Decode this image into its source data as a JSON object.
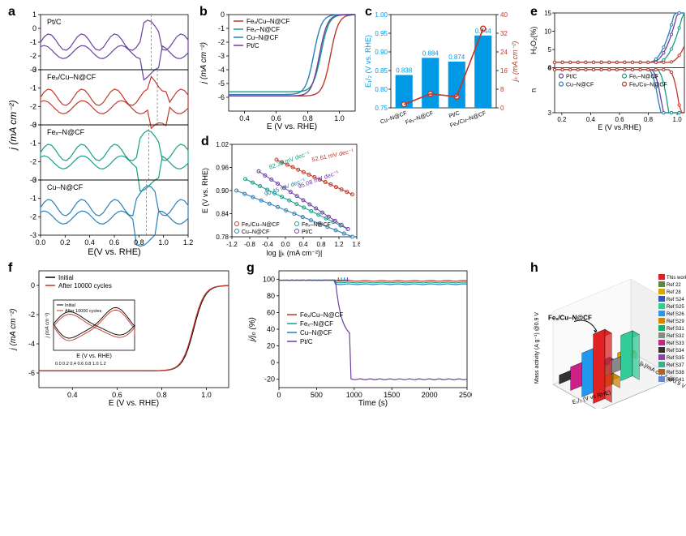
{
  "colors": {
    "fexcu": "#c0392b",
    "fex": "#16a085",
    "cu": "#2980b9",
    "pt": "#6a3fa0",
    "bar": "#0099e5",
    "bar_line": "#c0392b",
    "black": "#000000",
    "red": "#c0392b"
  },
  "panels": {
    "a": {
      "label": "a",
      "xlabel": "E(V vs. RHE)",
      "ylabel": "j (mA cm⁻²)",
      "xlim": [
        0,
        1.2
      ],
      "subplots": [
        {
          "name": "Pt/C",
          "color": "#6a3fa0",
          "ylo": -3,
          "yhi": 1,
          "dashx": 0.9
        },
        {
          "name": "Feₓ/Cu–N@CF",
          "color": "#c0392b",
          "ylo": -3,
          "yhi": 0,
          "dashx": 0.95
        },
        {
          "name": "Feₓ–N@CF",
          "color": "#16a085",
          "ylo": -3,
          "yhi": 0,
          "dashx": 0.88
        },
        {
          "name": "Cu–N@CF",
          "color": "#2980b9",
          "ylo": -3,
          "yhi": 0,
          "dashx": 0.86
        }
      ]
    },
    "b": {
      "label": "b",
      "xlabel": "E (V vs. RHE)",
      "ylabel": "j (mA cm⁻²)",
      "xlim": [
        0.3,
        1.1
      ],
      "xticks": [
        0.4,
        0.6,
        0.8,
        1.0
      ],
      "ylim": [
        -7,
        0
      ],
      "yticks": [
        -6,
        -5,
        -4,
        -3,
        -2,
        -1,
        0
      ],
      "series": [
        {
          "name": "Feₓ/Cu–N@CF",
          "color": "#c0392b",
          "halfwave": 0.944,
          "limit": -5.9
        },
        {
          "name": "Feₓ–N@CF",
          "color": "#16a085",
          "halfwave": 0.884,
          "limit": -5.6
        },
        {
          "name": "Cu–N@CF",
          "color": "#2980b9",
          "halfwave": 0.838,
          "limit": -5.8
        },
        {
          "name": "Pt/C",
          "color": "#6a3fa0",
          "halfwave": 0.874,
          "limit": -5.9
        }
      ]
    },
    "c": {
      "label": "c",
      "ylabel_left": "E₁/₂ (V vs. RHE)",
      "ylabel_right": "jₖ (mA cm⁻²)",
      "ylim_left": [
        0.75,
        1.0
      ],
      "ylim_right": [
        0,
        40
      ],
      "categories": [
        "Cu–N@CF",
        "Feₓ–N@CF",
        "Pt/C",
        "Feₓ/Cu–N@CF"
      ],
      "bar_values": [
        0.838,
        0.884,
        0.874,
        0.944
      ],
      "bar_labels": [
        "0.838",
        "0.884",
        "0.874",
        "0.944"
      ],
      "line_values": [
        1.5,
        6.0,
        4.8,
        34.0
      ],
      "bar_color": "#0099e5",
      "line_color": "#c0392b"
    },
    "d": {
      "label": "d",
      "xlabel": "log |jₖ (mA cm⁻²)|",
      "ylabel": "E (V vs. RHE)",
      "xlim": [
        -1.2,
        1.6
      ],
      "xticks": [
        -1.2,
        -0.8,
        -0.4,
        0,
        0.4,
        0.8,
        1.2,
        1.6
      ],
      "ylim": [
        0.78,
        1.02
      ],
      "yticks": [
        0.78,
        0.84,
        0.9,
        0.96,
        1.02
      ],
      "lines": [
        {
          "name": "Feₓ/Cu–N@CF",
          "color": "#c0392b",
          "x0": -0.2,
          "y0": 0.98,
          "x1": 1.5,
          "y1": 0.89,
          "tafel": "52.61 mV dec⁻¹"
        },
        {
          "name": "Feₓ–N@CF",
          "color": "#16a085",
          "x0": -0.9,
          "y0": 0.93,
          "x1": 1.4,
          "y1": 0.8,
          "tafel": "82.38 mV dec⁻¹"
        },
        {
          "name": "Cu–N@CF",
          "color": "#2980b9",
          "x0": -1.1,
          "y0": 0.9,
          "x1": 1.5,
          "y1": 0.78,
          "tafel": "90.45 mV dec⁻¹"
        },
        {
          "name": "Pt/C",
          "color": "#6a3fa0",
          "x0": -0.6,
          "y0": 0.95,
          "x1": 1.4,
          "y1": 0.8,
          "tafel": "95.08 mV dec⁻¹"
        }
      ]
    },
    "e": {
      "label": "e",
      "xlabel": "E (V vs.RHE)",
      "ylabel_top": "H₂O₂(%)",
      "ylabel_bot": "n",
      "xlim": [
        0.15,
        1.05
      ],
      "xticks": [
        0.2,
        0.4,
        0.6,
        0.8,
        1.0
      ],
      "ylim_top": [
        0,
        15
      ],
      "ylim_bot": [
        3,
        4
      ],
      "legend": [
        {
          "name": "Pt/C",
          "color": "#6a3fa0"
        },
        {
          "name": "Feₓ–N@CF",
          "color": "#16a085"
        },
        {
          "name": "Cu–N@CF",
          "color": "#2980b9"
        },
        {
          "name": "Feₓ/Cu–N@CF",
          "color": "#c0392b"
        }
      ]
    },
    "f": {
      "label": "f",
      "xlabel": "E (V vs. RHE)",
      "ylabel": "j (mA cm⁻²)",
      "xlim": [
        0.25,
        1.1
      ],
      "xticks": [
        0.4,
        0.6,
        0.8,
        1.0
      ],
      "ylim": [
        -7,
        1
      ],
      "yticks": [
        -6,
        -4,
        -2,
        0
      ],
      "series": [
        {
          "name": "Initial",
          "color": "#000000"
        },
        {
          "name": "After 10000 cycles",
          "color": "#c0392b"
        }
      ],
      "inset_xlabel": "E (V vs. RHE)"
    },
    "g": {
      "label": "g",
      "xlabel": "Time (s)",
      "ylabel": "j/j₀ (%)",
      "xlim": [
        0,
        2500
      ],
      "xticks": [
        0,
        500,
        1000,
        1500,
        2000,
        2500
      ],
      "ylim": [
        -30,
        110
      ],
      "yticks": [
        -20,
        0,
        20,
        40,
        60,
        80,
        100
      ],
      "series": [
        {
          "name": "Feₓ/Cu–N@CF",
          "color": "#c0392b"
        },
        {
          "name": "Feₓ–N@CF",
          "color": "#16a085"
        },
        {
          "name": "Cu–N@CF",
          "color": "#2980b9"
        },
        {
          "name": "Pt/C",
          "color": "#6a3fa0"
        }
      ],
      "drop_time": 750
    },
    "h": {
      "label": "h",
      "annotation": "Feₓ/Cu–N@CF",
      "axes": [
        "Mass activity (A g⁻¹) @0.9 V",
        "E₁/₂ (V vs RHE)",
        "|jₖ|/mA cm⁻² @0.9 V"
      ],
      "legend_items": [
        "This work",
        "Ref 22",
        "Ref 28",
        "Ref S24",
        "Ref S25",
        "Ref S26",
        "Ref S29",
        "Ref S31",
        "Ref S32",
        "Ref S33",
        "Ref S34",
        "Ref S35",
        "Ref S37",
        "Ref S38",
        "Ref S41"
      ],
      "bars": [
        {
          "color": "#333333",
          "h": 0.12,
          "row": 0,
          "col": 0
        },
        {
          "color": "#5a8a3a",
          "h": 0.1,
          "row": 0,
          "col": 1
        },
        {
          "color": "#3355cc",
          "h": 0.08,
          "row": 0,
          "col": 2
        },
        {
          "color": "#d7a900",
          "h": 0.09,
          "row": 0,
          "col": 3
        },
        {
          "color": "#cc2288",
          "h": 0.32,
          "row": 1,
          "col": 0
        },
        {
          "color": "#00bb66",
          "h": 0.22,
          "row": 1,
          "col": 1
        },
        {
          "color": "#888888",
          "h": 0.18,
          "row": 1,
          "col": 2
        },
        {
          "color": "#2299ee",
          "h": 0.6,
          "row": 2,
          "col": 0
        },
        {
          "color": "#cc8800",
          "h": 0.15,
          "row": 2,
          "col": 1
        },
        {
          "color": "#33cc99",
          "h": 0.62,
          "row": 2,
          "col": 2
        },
        {
          "color": "#e02222",
          "h": 0.95,
          "row": 3,
          "col": 0
        }
      ]
    }
  }
}
